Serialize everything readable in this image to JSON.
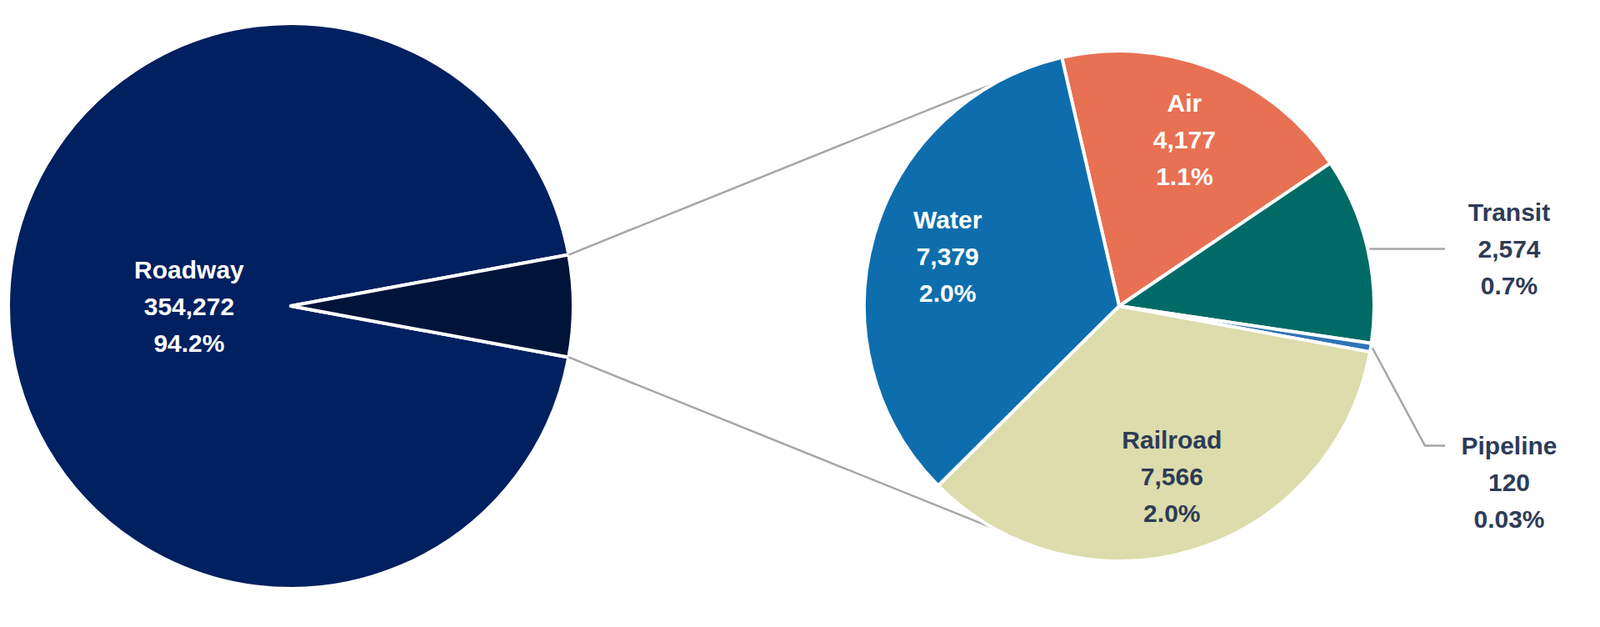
{
  "chart_data": [
    {
      "type": "pie",
      "categories": [
        "Roadway",
        null
      ],
      "values": [
        354272,
        21816
      ],
      "value_labels": [
        "354,272",
        null
      ],
      "percents": [
        94.2,
        5.8
      ],
      "percent_labels": [
        "94.2%",
        null
      ],
      "colors": [
        "#002060",
        "#00143a"
      ],
      "data_labels": true
    },
    {
      "type": "pie",
      "categories": [
        "Air",
        "Transit",
        "Pipeline",
        "Railroad",
        "Water"
      ],
      "values": [
        4177,
        2574,
        120,
        7566,
        7379
      ],
      "value_labels": [
        "4,177",
        "2,574",
        "120",
        "7,566",
        "7,379"
      ],
      "percents": [
        1.1,
        0.7,
        0.03,
        2.0,
        2.0
      ],
      "percent_labels": [
        "1.1%",
        "0.7%",
        "0.03%",
        "2.0%",
        "2.0%"
      ],
      "colors": [
        "#e87053",
        "#006b66",
        "#2e75b6",
        "#dcdcac",
        "#0e6ead"
      ],
      "data_labels": true
    }
  ]
}
